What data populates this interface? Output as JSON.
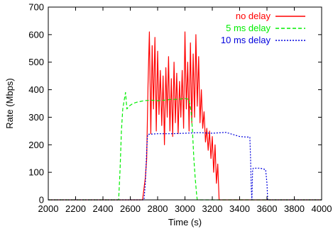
{
  "chart_data": {
    "type": "line",
    "xlabel": "Time (s)",
    "ylabel": "Rate (Mbps)",
    "xlim": [
      2000,
      4000
    ],
    "ylim": [
      0,
      700
    ],
    "xticks": [
      2000,
      2200,
      2400,
      2600,
      2800,
      3000,
      3200,
      3400,
      3600,
      3800,
      4000
    ],
    "yticks": [
      0,
      100,
      200,
      300,
      400,
      500,
      600,
      700
    ],
    "grid": false,
    "legend_position": "top-right",
    "series": [
      {
        "name": "no delay",
        "color": "#ff0000",
        "style": "solid",
        "x": [
          2000,
          2690,
          2710,
          2720,
          2730,
          2740,
          2750,
          2760,
          2770,
          2780,
          2790,
          2800,
          2810,
          2820,
          2830,
          2840,
          2850,
          2860,
          2870,
          2880,
          2890,
          2900,
          2910,
          2920,
          2930,
          2940,
          2950,
          2960,
          2970,
          2980,
          2990,
          3000,
          3010,
          3020,
          3030,
          3040,
          3050,
          3060,
          3070,
          3080,
          3090,
          3100,
          3110,
          3120,
          3130,
          3140,
          3150,
          3160,
          3170,
          3180,
          3190,
          3200,
          3210,
          3220,
          3230,
          3240,
          3250,
          4000
        ],
        "y": [
          0,
          0,
          80,
          150,
          420,
          610,
          240,
          560,
          330,
          590,
          250,
          540,
          310,
          470,
          270,
          450,
          200,
          480,
          300,
          520,
          250,
          440,
          230,
          500,
          280,
          460,
          240,
          430,
          300,
          470,
          260,
          610,
          330,
          500,
          250,
          570,
          280,
          530,
          300,
          600,
          340,
          520,
          280,
          400,
          260,
          320,
          210,
          260,
          180,
          250,
          150,
          230,
          100,
          200,
          60,
          130,
          0,
          0
        ]
      },
      {
        "name": "5 ms delay",
        "color": "#00ee00",
        "style": "dashed",
        "x": [
          2000,
          2515,
          2525,
          2535,
          2545,
          2555,
          2565,
          2575,
          2590,
          2620,
          2650,
          2700,
          2750,
          2800,
          2850,
          2900,
          2950,
          3000,
          3030,
          3045,
          3055,
          3065,
          3075,
          3085,
          3090,
          3100,
          4000
        ],
        "y": [
          0,
          0,
          110,
          250,
          330,
          360,
          390,
          330,
          340,
          350,
          355,
          360,
          362,
          360,
          362,
          365,
          365,
          368,
          365,
          320,
          250,
          150,
          80,
          20,
          0,
          0,
          0
        ]
      },
      {
        "name": "10 ms delay",
        "color": "#0000dd",
        "style": "dotted",
        "x": [
          2000,
          2700,
          2710,
          2720,
          2725,
          2730,
          2800,
          2900,
          3000,
          3100,
          3200,
          3300,
          3400,
          3450,
          3475,
          3480,
          3485,
          3490,
          3495,
          3500,
          3550,
          3590,
          3600,
          3605,
          3610,
          4000
        ],
        "y": [
          0,
          0,
          60,
          180,
          230,
          238,
          240,
          240,
          242,
          244,
          242,
          245,
          230,
          228,
          228,
          150,
          40,
          0,
          110,
          115,
          115,
          110,
          60,
          0,
          0,
          0
        ]
      }
    ]
  }
}
